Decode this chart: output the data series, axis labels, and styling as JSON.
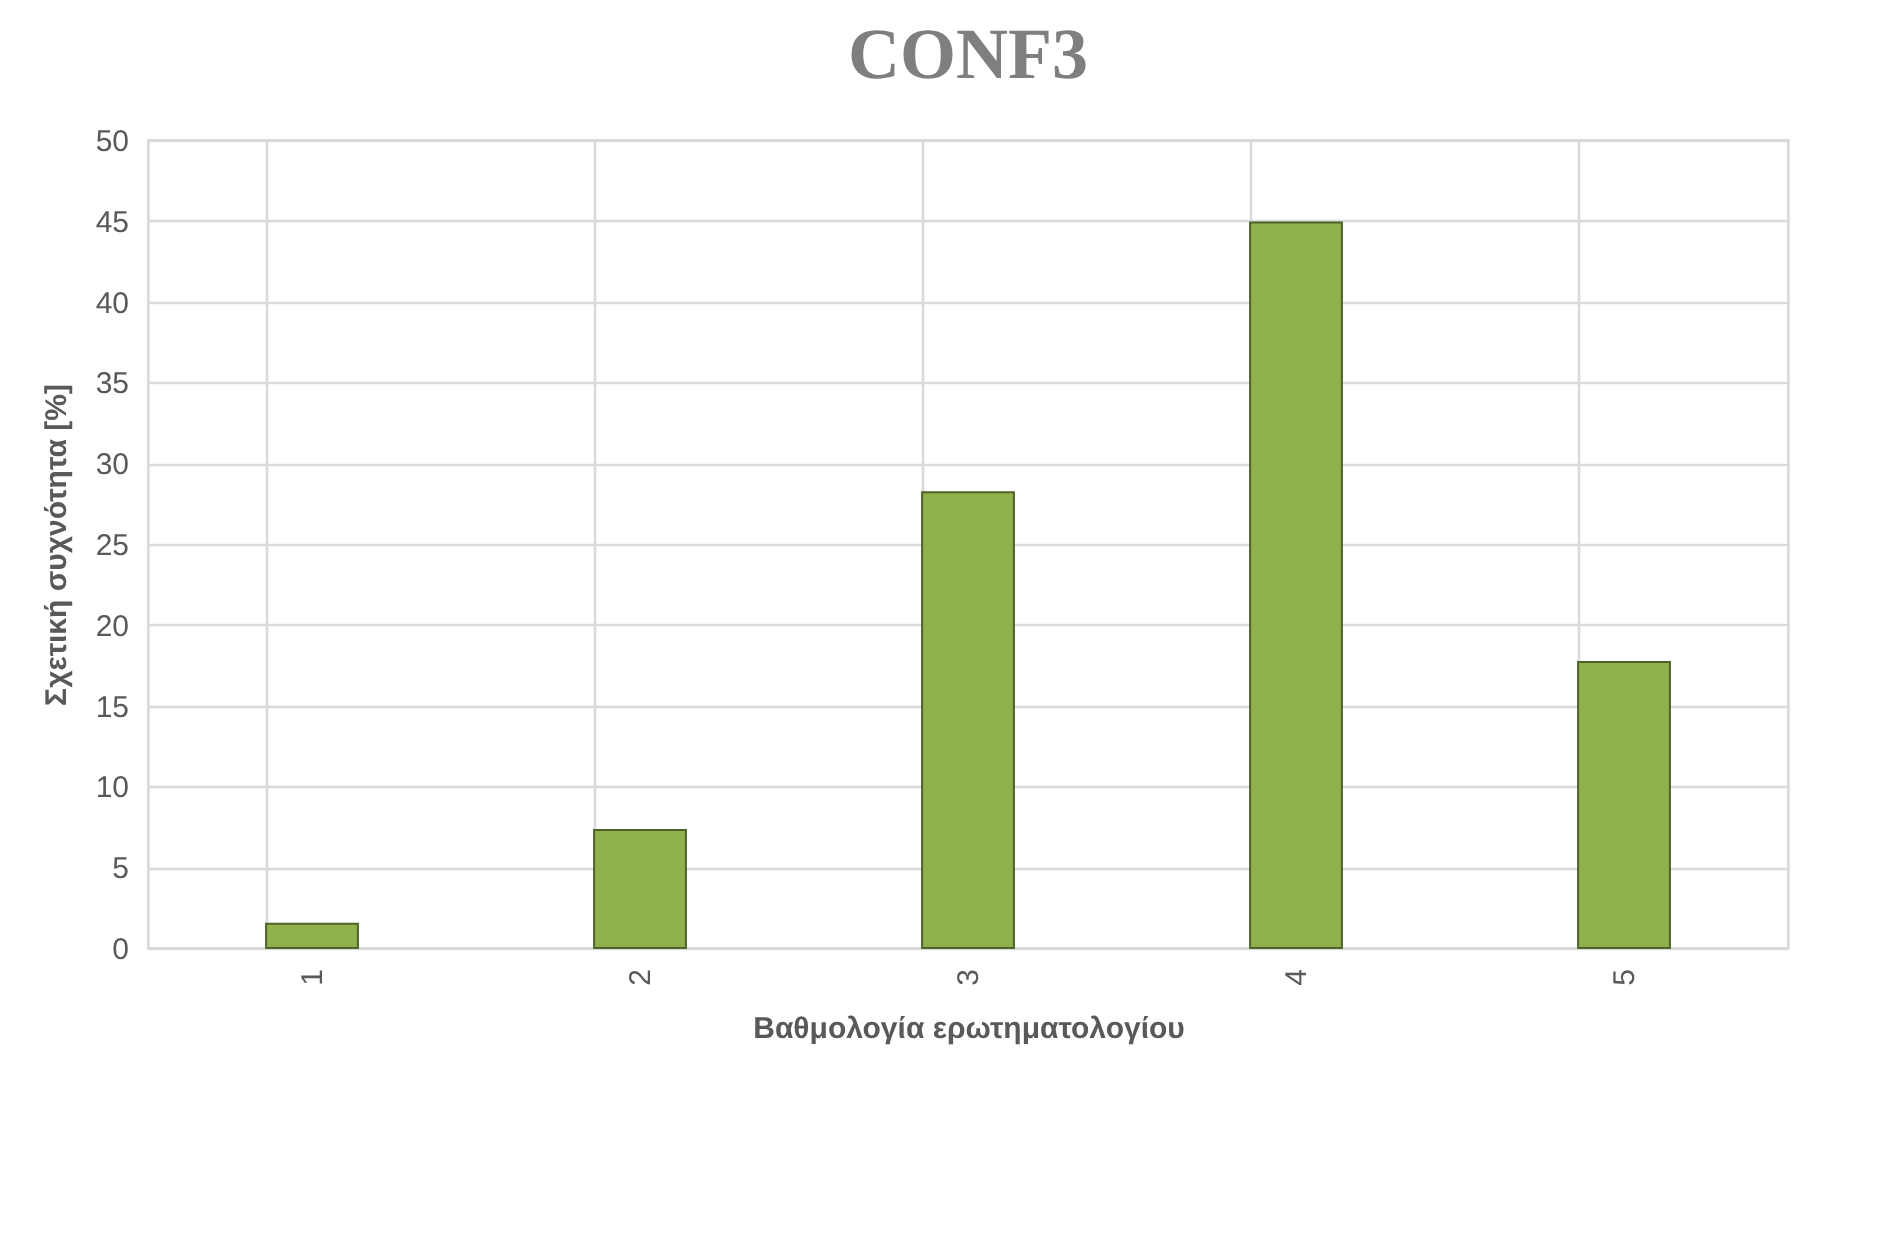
{
  "chart_data": {
    "type": "bar",
    "title": "CONF3",
    "xlabel": "Βαθμολογία ερωτηματολογίου",
    "ylabel": "Σχετική συχνότητα [%]",
    "categories": [
      "1",
      "2",
      "3",
      "4",
      "5"
    ],
    "values": [
      1.5,
      7.3,
      28.2,
      44.9,
      17.7
    ],
    "color": "#8fb04c",
    "ylim": [
      0,
      50
    ],
    "yticks": [
      0,
      5,
      10,
      15,
      20,
      25,
      30,
      35,
      40,
      45,
      50
    ],
    "grid": true
  }
}
